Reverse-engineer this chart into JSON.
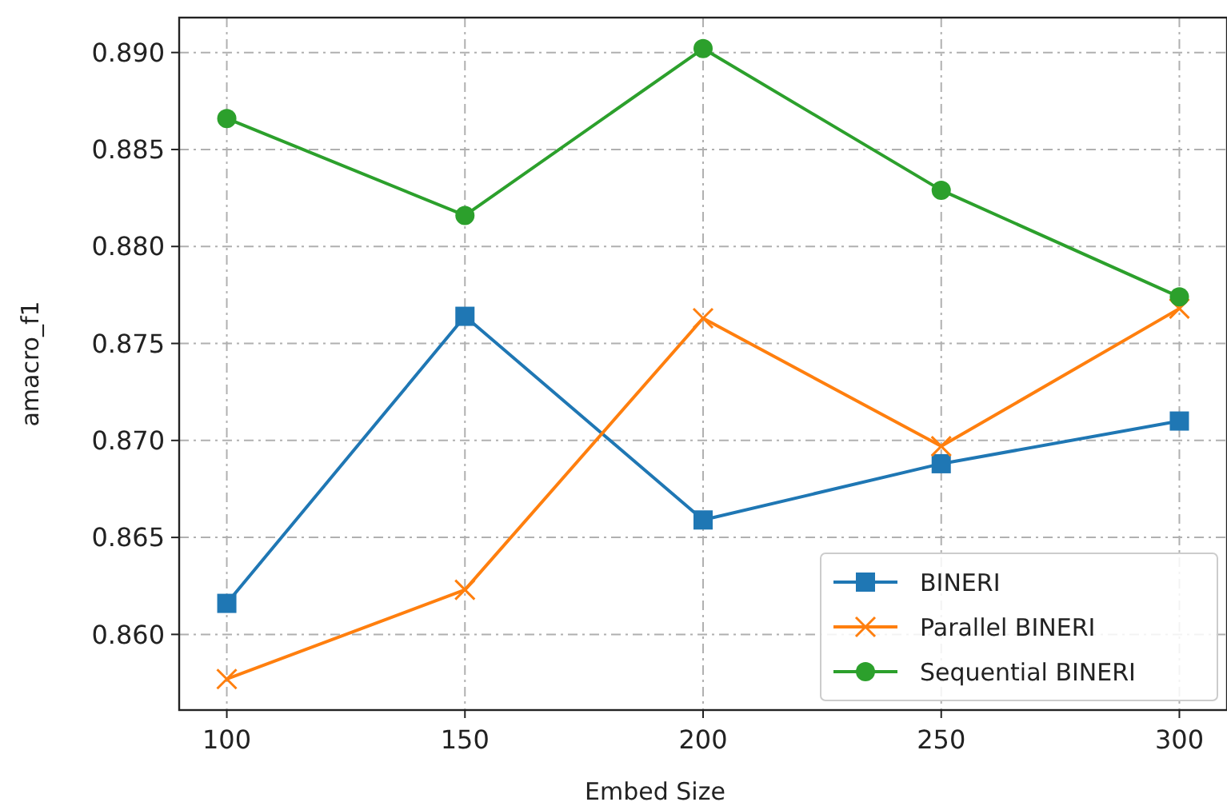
{
  "chart_data": {
    "type": "line",
    "xlabel": "Embed Size",
    "ylabel": "amacro_f1",
    "x": [
      100,
      150,
      200,
      250,
      300
    ],
    "xlim": [
      90,
      310
    ],
    "xticks": [
      100,
      150,
      200,
      250,
      300
    ],
    "ylim": [
      0.8561,
      0.8918
    ],
    "yticks": [
      {
        "value": 0.86,
        "label": "0.860"
      },
      {
        "value": 0.865,
        "label": "0.865"
      },
      {
        "value": 0.87,
        "label": "0.870"
      },
      {
        "value": 0.875,
        "label": "0.875"
      },
      {
        "value": 0.88,
        "label": "0.880"
      },
      {
        "value": 0.885,
        "label": "0.885"
      },
      {
        "value": 0.89,
        "label": "0.890"
      }
    ],
    "grid": true,
    "legend": "bottom right",
    "series": [
      {
        "name": "BINERI",
        "color": "#1f77b4",
        "marker": "square",
        "values": [
          0.8616,
          0.8764,
          0.8659,
          0.8688,
          0.871
        ]
      },
      {
        "name": "Parallel BINERI",
        "color": "#ff7f0e",
        "marker": "cross",
        "values": [
          0.8577,
          0.8623,
          0.8763,
          0.8697,
          0.8768
        ]
      },
      {
        "name": "Sequential BINERI",
        "color": "#2ca02c",
        "marker": "circle",
        "values": [
          0.8866,
          0.8816,
          0.8902,
          0.8829,
          0.8774
        ]
      }
    ]
  }
}
